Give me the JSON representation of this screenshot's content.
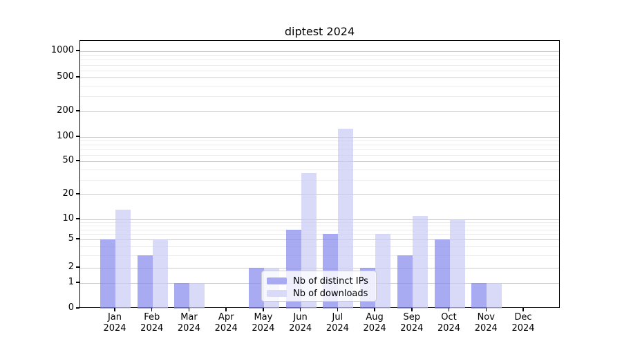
{
  "title": "diptest 2024",
  "legend": {
    "items": [
      {
        "label": "Nb of distinct IPs",
        "color": "#a8aaf2",
        "fill": "rgba(131,134,236,0.7)"
      },
      {
        "label": "Nb of downloads",
        "color": "#d8daf8",
        "fill": "rgba(199,202,245,0.7)"
      }
    ]
  },
  "chart_data": {
    "type": "bar",
    "title": "diptest 2024",
    "categories": [
      {
        "month": "Jan",
        "year": "2024"
      },
      {
        "month": "Feb",
        "year": "2024"
      },
      {
        "month": "Mar",
        "year": "2024"
      },
      {
        "month": "Apr",
        "year": "2024"
      },
      {
        "month": "May",
        "year": "2024"
      },
      {
        "month": "Jun",
        "year": "2024"
      },
      {
        "month": "Jul",
        "year": "2024"
      },
      {
        "month": "Aug",
        "year": "2024"
      },
      {
        "month": "Sep",
        "year": "2024"
      },
      {
        "month": "Oct",
        "year": "2024"
      },
      {
        "month": "Nov",
        "year": "2024"
      },
      {
        "month": "Dec",
        "year": "2024"
      }
    ],
    "series": [
      {
        "name": "Nb of distinct IPs",
        "values": [
          5,
          3,
          1,
          0,
          2,
          7,
          6,
          2,
          3,
          5,
          1,
          0
        ]
      },
      {
        "name": "Nb of downloads",
        "values": [
          13,
          5,
          1,
          0,
          2,
          36,
          125,
          6,
          11,
          10,
          1,
          0
        ]
      }
    ],
    "xlabel": "",
    "ylabel": "",
    "yscale": "symlog",
    "ylim": [
      0,
      1400
    ],
    "y_major_ticks": [
      0,
      1,
      2,
      5,
      10,
      20,
      50,
      100,
      200,
      500,
      1000
    ],
    "y_minor_ticks": [
      3,
      4,
      6,
      7,
      8,
      9,
      30,
      40,
      60,
      70,
      80,
      90,
      300,
      400,
      600,
      700,
      800,
      900
    ],
    "grid": true,
    "legend_position": "inside lower-center"
  }
}
